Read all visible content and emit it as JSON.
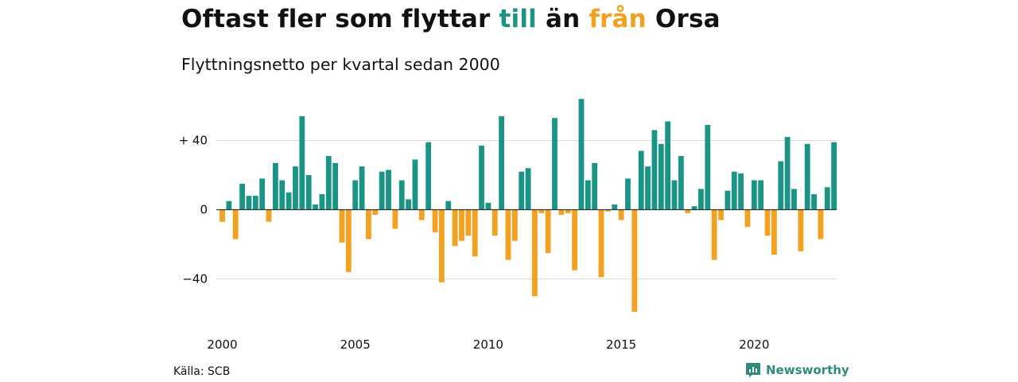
{
  "title": {
    "part1": "Oftast fler som flyttar ",
    "till": "till",
    "part2": " än ",
    "fran": "från",
    "part3": " Orsa"
  },
  "subtitle": "Flyttningsnetto per kvartal sedan 2000",
  "source": "Källa: SCB",
  "brand": "Newsworthy",
  "colors": {
    "positive": "#1a9585",
    "negative": "#f4a020",
    "grid": "#dddddd",
    "baseline": "#333333"
  },
  "chart_data": {
    "type": "bar",
    "x_start": "2000 Q1",
    "frequency": "quarterly",
    "ylim": [
      -60,
      62
    ],
    "y_ticks": [
      {
        "value": 40,
        "label": "+ 40"
      },
      {
        "value": 0,
        "label": "0"
      },
      {
        "value": -40,
        "label": "−40"
      }
    ],
    "x_ticks": [
      "2000",
      "2005",
      "2010",
      "2015",
      "2020"
    ],
    "grid": true,
    "values": [
      -7,
      5,
      -17,
      15,
      8,
      8,
      18,
      -7,
      27,
      17,
      10,
      25,
      54,
      20,
      3,
      9,
      31,
      27,
      -19,
      -36,
      17,
      25,
      -17,
      -3,
      22,
      23,
      -11,
      17,
      6,
      29,
      -6,
      39,
      -13,
      -42,
      5,
      -21,
      -18,
      -15,
      -27,
      37,
      4,
      -15,
      54,
      -29,
      -18,
      22,
      24,
      -50,
      -2,
      -25,
      53,
      -3,
      -2,
      -35,
      64,
      17,
      27,
      -39,
      -1,
      3,
      -6,
      18,
      -59,
      34,
      25,
      46,
      38,
      51,
      17,
      31,
      -2,
      2,
      12,
      49,
      -29,
      -6,
      11,
      22,
      21,
      -10,
      17,
      17,
      -15,
      -26,
      28,
      42,
      12,
      -24,
      38,
      9,
      -17,
      13,
      39
    ]
  }
}
